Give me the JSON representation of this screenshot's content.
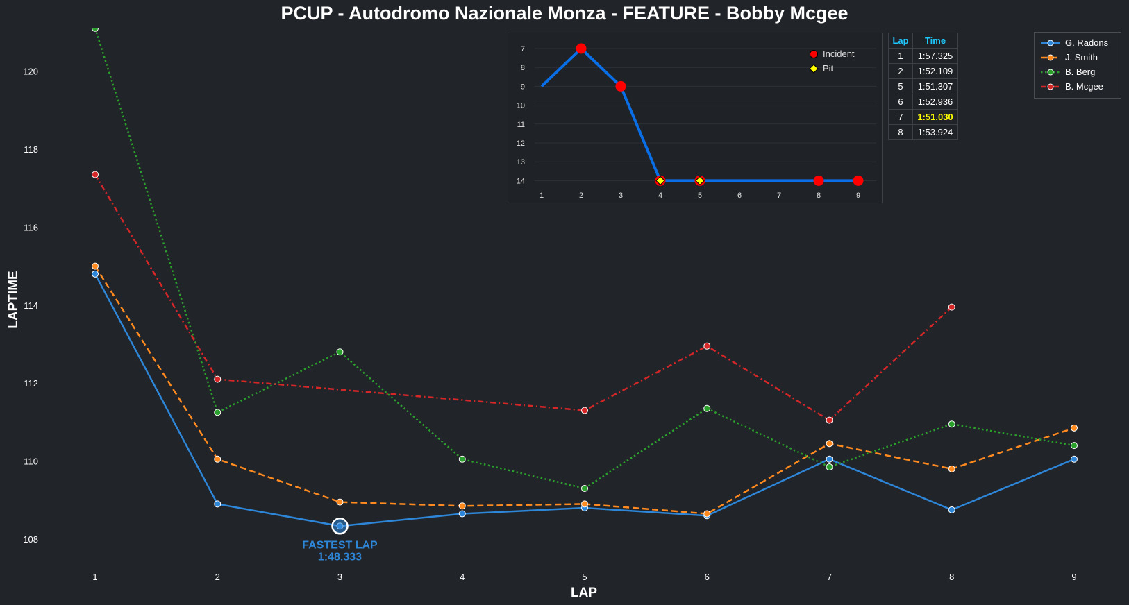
{
  "title": "PCUP - Autodromo Nazionale Monza - FEATURE - Bobby Mcgee",
  "chart_data": [
    {
      "type": "line",
      "xlabel": "LAP",
      "ylabel": "LAPTIME",
      "x": [
        1,
        2,
        3,
        4,
        5,
        6,
        7,
        8,
        9
      ],
      "x_ticks": [
        "1",
        "2",
        "3",
        "4",
        "5",
        "6",
        "7",
        "8",
        "9"
      ],
      "y_ticks": [
        "108",
        "110",
        "112",
        "114",
        "116",
        "118",
        "120"
      ],
      "ylim": [
        107.3,
        121.0
      ],
      "xlim": [
        0.5,
        9.5
      ],
      "grid": false,
      "legend_position": "top-right",
      "series": [
        {
          "name": "G. Radons",
          "color": "#2e86d8",
          "dash": "solid",
          "values": [
            114.8,
            108.9,
            108.333,
            108.65,
            108.8,
            108.6,
            110.05,
            108.75,
            110.05
          ]
        },
        {
          "name": "J. Smith",
          "color": "#ff8a1f",
          "dash": "dashed",
          "values": [
            115.0,
            110.05,
            108.95,
            108.85,
            108.9,
            108.65,
            110.45,
            109.8,
            110.85
          ]
        },
        {
          "name": "B. Berg",
          "color": "#2ca02c",
          "dash": "dotted",
          "values": [
            121.1,
            111.25,
            112.8,
            110.05,
            109.3,
            111.35,
            109.85,
            110.95,
            110.4
          ]
        },
        {
          "name": "B. Mcgee",
          "color": "#d62728",
          "dash": "dashdot",
          "values": [
            117.35,
            112.1,
            null,
            null,
            111.3,
            112.95,
            111.05,
            113.95,
            null
          ]
        }
      ],
      "annotation": {
        "label": "FASTEST LAP",
        "value": "1:48.333",
        "x": 3,
        "y": 108.333,
        "color": "#2e86d8"
      }
    },
    {
      "type": "line",
      "x": [
        1,
        2,
        3,
        4,
        5,
        6,
        7,
        8,
        9
      ],
      "x_ticks": [
        "1",
        "2",
        "3",
        "4",
        "5",
        "6",
        "7",
        "8",
        "9"
      ],
      "y_ticks": [
        "7",
        "8",
        "9",
        "10",
        "11",
        "12",
        "13",
        "14"
      ],
      "ylim": [
        7,
        14
      ],
      "y_inverted": true,
      "position": [
        9,
        7,
        9,
        14,
        14,
        14,
        14,
        14,
        14
      ],
      "line_color": "#0a6ee6",
      "incidents": [
        2,
        3,
        8,
        9
      ],
      "pits": [
        4,
        5
      ],
      "legend": {
        "incident": "Incident",
        "pit": "Pit"
      },
      "legend_position": "top-right"
    }
  ],
  "lap_table": {
    "headers": [
      "Lap",
      "Time"
    ],
    "rows": [
      {
        "lap": "1",
        "time": "1:57.325"
      },
      {
        "lap": "2",
        "time": "1:52.109"
      },
      {
        "lap": "5",
        "time": "1:51.307"
      },
      {
        "lap": "6",
        "time": "1:52.936"
      },
      {
        "lap": "7",
        "time": "1:51.030"
      },
      {
        "lap": "8",
        "time": "1:53.924"
      }
    ],
    "best_time": "1:51.030"
  },
  "colors": {
    "background": "#212429",
    "highlight": "#ffff00",
    "header": "#1ec8ff"
  }
}
